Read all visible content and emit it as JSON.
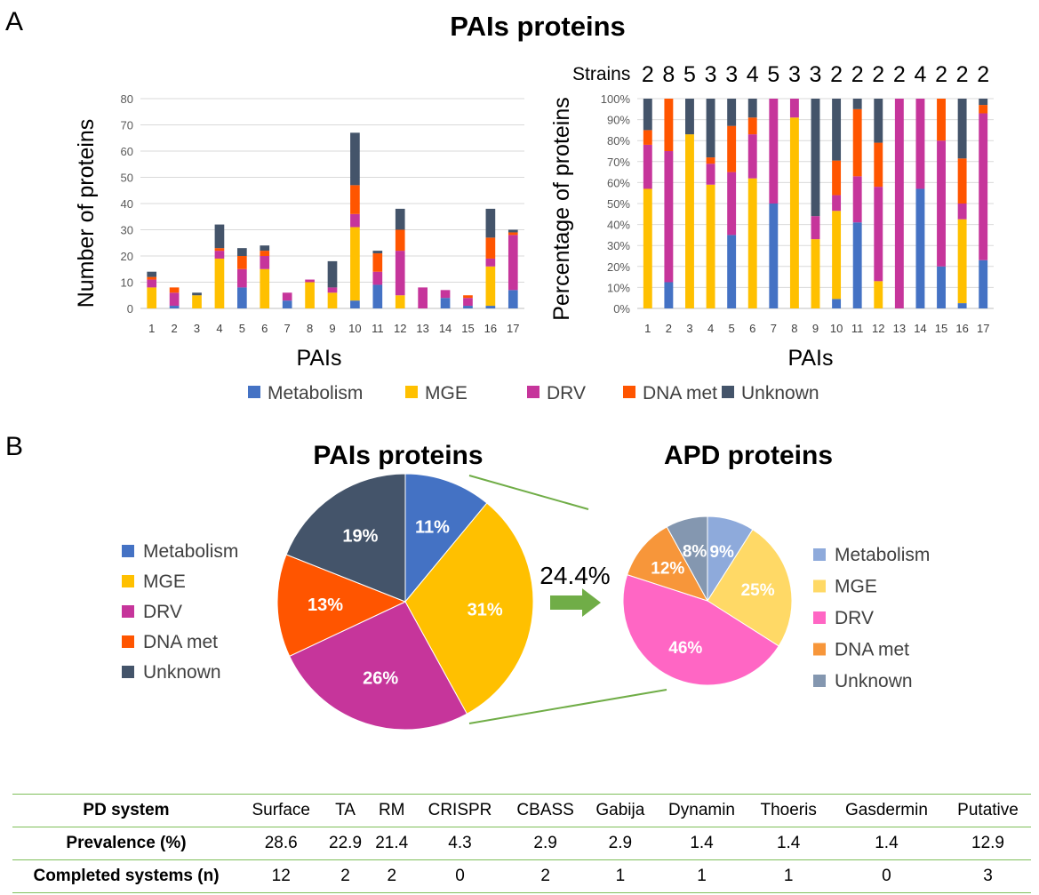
{
  "panel_labels": {
    "a": "A",
    "b": "B"
  },
  "legend_items": [
    {
      "label": "Metabolism",
      "color": "#4472c4"
    },
    {
      "label": "MGE",
      "color": "#ffc000"
    },
    {
      "label": "DRV",
      "color": "#c6359b"
    },
    {
      "label": "DNA met",
      "color": "#ff5500"
    },
    {
      "label": "Unknown",
      "color": "#44546a"
    }
  ],
  "apd_colors": [
    "#8eaadb",
    "#ffd966",
    "#ff66c4",
    "#f7963a",
    "#8497b0"
  ],
  "arrow": {
    "label": "24.4%",
    "color": "#70ad47"
  },
  "chart_data": [
    {
      "type": "bar",
      "stacked": true,
      "title": "PAIs proteins",
      "xlabel": "PAIs",
      "ylabel": "Number of proteins",
      "ylim": [
        0,
        80
      ],
      "yticks": [
        0,
        10,
        20,
        30,
        40,
        50,
        60,
        70,
        80
      ],
      "categories": [
        "1",
        "2",
        "3",
        "4",
        "5",
        "6",
        "7",
        "8",
        "9",
        "10",
        "11",
        "12",
        "13",
        "14",
        "15",
        "16",
        "17"
      ],
      "series": [
        {
          "name": "Metabolism",
          "values": [
            0,
            1,
            0,
            0,
            8,
            0,
            3,
            0,
            0,
            3,
            9,
            0,
            0,
            4,
            1,
            1,
            7
          ]
        },
        {
          "name": "MGE",
          "values": [
            8,
            0,
            5,
            19,
            0,
            15,
            0,
            10,
            6,
            28,
            0,
            5,
            0,
            0,
            0,
            15,
            0
          ]
        },
        {
          "name": "DRV",
          "values": [
            3,
            5,
            0,
            3,
            7,
            5,
            3,
            1,
            2,
            5,
            5,
            17,
            8,
            3,
            3,
            3,
            21
          ]
        },
        {
          "name": "DNA met",
          "values": [
            1,
            2,
            0,
            1,
            5,
            2,
            0,
            0,
            0,
            11,
            7,
            8,
            0,
            0,
            1,
            8,
            1
          ]
        },
        {
          "name": "Unknown",
          "values": [
            2,
            0,
            1,
            9,
            3,
            2,
            0,
            0,
            10,
            20,
            1,
            8,
            0,
            0,
            0,
            11,
            1
          ]
        }
      ]
    },
    {
      "type": "bar",
      "stacked": true,
      "percent": true,
      "xlabel": "PAIs",
      "ylabel": "Percentage of proteins",
      "ylim": [
        0,
        100
      ],
      "yticks": [
        "0%",
        "10%",
        "20%",
        "30%",
        "40%",
        "50%",
        "60%",
        "70%",
        "80%",
        "90%",
        "100%"
      ],
      "strains_label": "Strains",
      "strains": [
        "2",
        "8",
        "5",
        "3",
        "3",
        "4",
        "5",
        "3",
        "3",
        "2",
        "2",
        "2",
        "2",
        "4",
        "2",
        "2",
        "2"
      ],
      "categories": [
        "1",
        "2",
        "3",
        "4",
        "5",
        "6",
        "7",
        "8",
        "9",
        "10",
        "11",
        "12",
        "13",
        "14",
        "15",
        "16",
        "17"
      ],
      "series": [
        {
          "name": "Metabolism",
          "values": [
            0,
            12.5,
            0,
            0,
            35,
            0,
            50,
            0,
            0,
            4.5,
            41,
            0,
            0,
            57,
            20,
            2.5,
            23
          ]
        },
        {
          "name": "MGE",
          "values": [
            57,
            0,
            83,
            59,
            0,
            62,
            0,
            91,
            33,
            42,
            0,
            13,
            0,
            0,
            0,
            40,
            0
          ]
        },
        {
          "name": "DRV",
          "values": [
            21,
            62.5,
            0,
            10,
            30,
            21,
            50,
            9,
            11,
            7.5,
            22,
            45,
            100,
            43,
            60,
            7.5,
            70
          ]
        },
        {
          "name": "DNA met",
          "values": [
            7,
            25,
            0,
            3,
            22,
            8,
            0,
            0,
            0,
            16.5,
            32,
            21,
            0,
            0,
            20,
            21.5,
            4
          ]
        },
        {
          "name": "Unknown",
          "values": [
            15,
            0,
            17,
            28,
            13,
            9,
            0,
            0,
            56,
            29.5,
            5,
            21,
            0,
            0,
            0,
            28.5,
            3
          ]
        }
      ]
    },
    {
      "type": "pie",
      "title": "PAIs proteins",
      "labels": [
        "Metabolism",
        "MGE",
        "DRV",
        "DNA met",
        "Unknown"
      ],
      "values": [
        11,
        31,
        26,
        13,
        19
      ],
      "value_labels": [
        "11%",
        "31%",
        "26%",
        "13%",
        "19%"
      ]
    },
    {
      "type": "pie",
      "title": "APD proteins",
      "labels": [
        "Metabolism",
        "MGE",
        "DRV",
        "DNA met",
        "Unknown"
      ],
      "values": [
        9,
        25,
        46,
        12,
        8
      ],
      "value_labels": [
        "9%",
        "25%",
        "46%",
        "12%",
        "8%"
      ]
    },
    {
      "type": "table",
      "columns": [
        "PD system",
        "Surface",
        "TA",
        "RM",
        "CRISPR",
        "CBASS",
        "Gabija",
        "Dynamin",
        "Thoeris",
        "Gasdermin",
        "Putative"
      ],
      "rows": [
        {
          "label": "Prevalence (%)",
          "values": [
            "28.6",
            "22.9",
            "21.4",
            "4.3",
            "2.9",
            "2.9",
            "1.4",
            "1.4",
            "1.4",
            "12.9"
          ]
        },
        {
          "label": "Completed systems (n)",
          "values": [
            "12",
            "2",
            "2",
            "0",
            "2",
            "1",
            "1",
            "1",
            "0",
            "3"
          ]
        }
      ]
    }
  ]
}
